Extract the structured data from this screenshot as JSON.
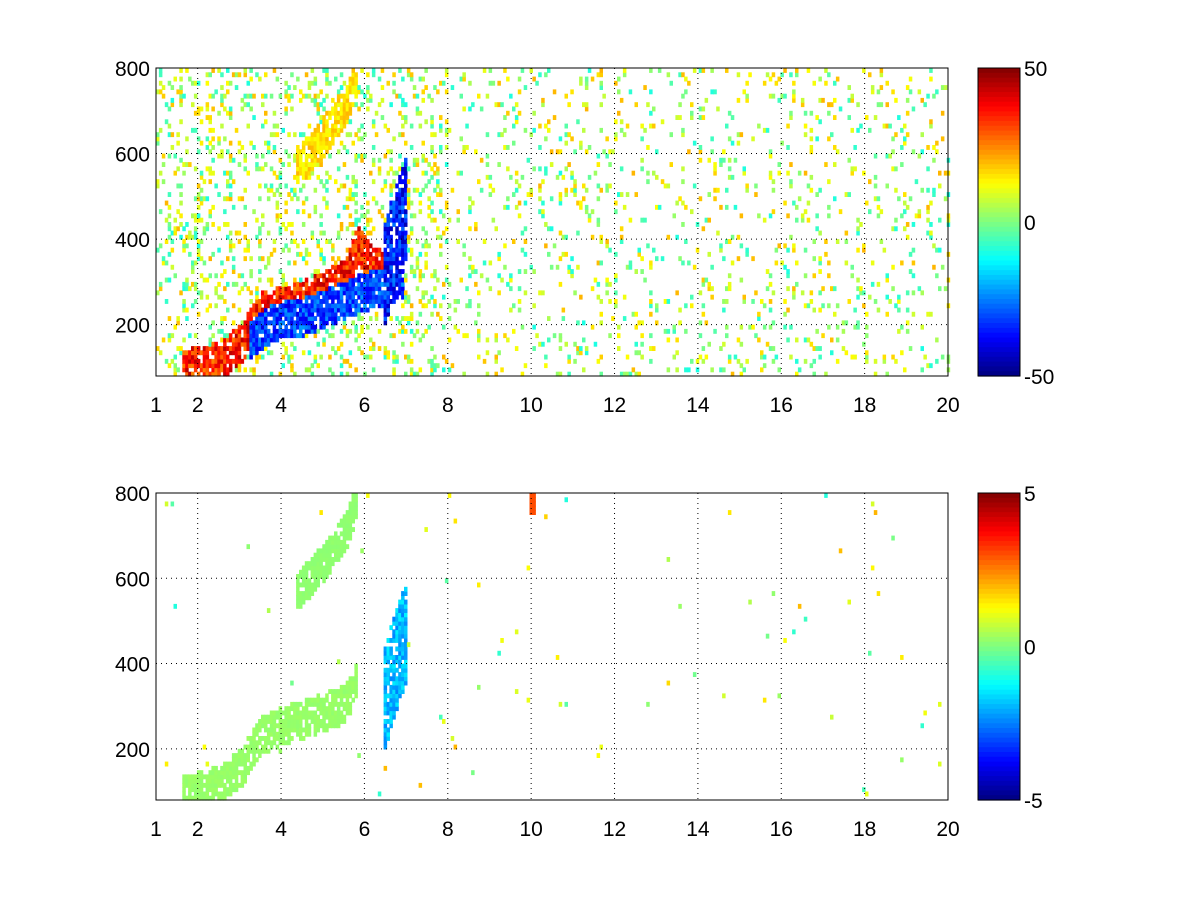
{
  "chart_data": [
    {
      "type": "heatmap",
      "title": "",
      "xlabel": "",
      "ylabel": "",
      "xlim": [
        1,
        20
      ],
      "ylim": [
        80,
        800
      ],
      "xticks": [
        1,
        2,
        4,
        6,
        8,
        10,
        12,
        14,
        16,
        18,
        20
      ],
      "yticks": [
        200,
        400,
        600,
        800
      ],
      "grid": true,
      "colormap": "jet",
      "clim": [
        -50,
        50
      ],
      "colorbar_ticks": [
        50,
        0,
        -50
      ],
      "features": [
        {
          "name": "rising band",
          "x": [
            1.6,
            2.5,
            3.0,
            3.5,
            4.0,
            4.5,
            5.0,
            5.5,
            5.8,
            6.2,
            6.6,
            6.9
          ],
          "y": [
            90,
            110,
            150,
            225,
            240,
            255,
            275,
            300,
            380,
            330,
            330,
            360
          ],
          "value": 45
        },
        {
          "name": "lower companion band",
          "x": [
            3.2,
            3.8,
            4.5,
            5.2,
            5.8,
            6.4,
            6.9
          ],
          "y": [
            160,
            200,
            215,
            240,
            265,
            285,
            300
          ],
          "value": -40
        },
        {
          "name": "upper band",
          "x": [
            4.3,
            4.8,
            5.2,
            5.6,
            5.8
          ],
          "y": [
            560,
            610,
            660,
            720,
            790
          ],
          "value": 20
        },
        {
          "name": "column x=6.5-7",
          "x": [
            6.4,
            6.6,
            6.8,
            7.0
          ],
          "y": [
            300,
            360,
            420,
            480
          ],
          "value": -45
        }
      ]
    },
    {
      "type": "heatmap",
      "title": "",
      "xlabel": "",
      "ylabel": "",
      "xlim": [
        1,
        20
      ],
      "ylim": [
        80,
        800
      ],
      "xticks": [
        1,
        2,
        4,
        6,
        8,
        10,
        12,
        14,
        16,
        18,
        20
      ],
      "yticks": [
        200,
        400,
        600,
        800
      ],
      "grid": true,
      "colormap": "jet",
      "clim": [
        -5,
        5
      ],
      "colorbar_ticks": [
        5,
        0,
        -5
      ],
      "features": [
        {
          "name": "rising band",
          "x": [
            1.6,
            2.5,
            3.0,
            3.5,
            4.0,
            4.5,
            5.0,
            5.5,
            5.8
          ],
          "y": [
            90,
            110,
            150,
            225,
            250,
            265,
            280,
            300,
            360
          ],
          "value": 0.3
        },
        {
          "name": "upper band",
          "x": [
            4.3,
            4.8,
            5.2,
            5.6,
            5.8
          ],
          "y": [
            560,
            610,
            660,
            720,
            790
          ],
          "value": 0.2
        },
        {
          "name": "column x=6.5-7",
          "x": [
            6.4,
            6.6,
            6.8,
            7.0
          ],
          "y": [
            300,
            360,
            420,
            480
          ],
          "value": -2.5
        },
        {
          "name": "hot spot",
          "x": [
            10.0
          ],
          "y": [
            780
          ],
          "value": 3
        }
      ]
    }
  ]
}
